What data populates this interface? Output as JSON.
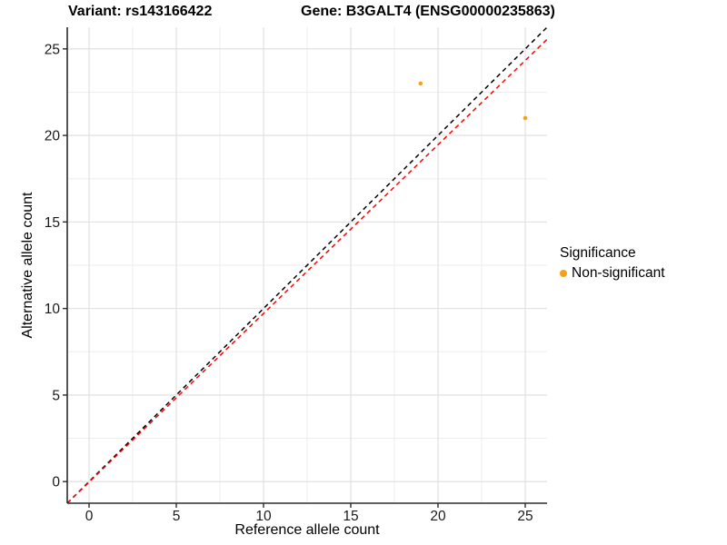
{
  "header": {
    "variant_title": "Variant: rs143166422",
    "gene_title": "Gene: B3GALT4 (ENSG00000235863)"
  },
  "chart_data": {
    "type": "scatter",
    "xlabel": "Reference allele count",
    "ylabel": "Alternative allele count",
    "xlim": [
      -1.25,
      26.25
    ],
    "ylim": [
      -1.25,
      26.25
    ],
    "x_ticks": [
      0,
      5,
      10,
      15,
      20,
      25
    ],
    "y_ticks": [
      0,
      5,
      10,
      15,
      20,
      25
    ],
    "x_minor": [
      2.5,
      7.5,
      12.5,
      17.5,
      22.5
    ],
    "y_minor": [
      2.5,
      7.5,
      12.5,
      17.5,
      22.5
    ],
    "grid": {
      "major_color": "#DEDEDE",
      "minor_color": "#EDEDED"
    },
    "axis_color": "#2B2B2B",
    "tick_label_color": "#1A1A1A",
    "series": [
      {
        "name": "Non-significant",
        "color": "#F9A019",
        "point_radius": 2.3,
        "points": [
          {
            "x": 19,
            "y": 23
          },
          {
            "x": 25,
            "y": 21
          }
        ]
      }
    ],
    "lines": [
      {
        "name": "identity-line",
        "color": "#000000",
        "dash": "5 4",
        "width": 1.5,
        "from": {
          "x": -1.25,
          "y": -1.25
        },
        "to": {
          "x": 26.25,
          "y": 26.25
        }
      },
      {
        "name": "fitted-line",
        "color": "#FF0000",
        "dash": "5 4",
        "width": 1.5,
        "from": {
          "x": -1.25,
          "y": -1.25
        },
        "to": {
          "x": 26.25,
          "y": 25.55
        }
      }
    ],
    "legend": {
      "title": "Significance",
      "position": "right",
      "items": [
        {
          "label": "Non-significant",
          "color": "#F9A019"
        }
      ]
    }
  }
}
